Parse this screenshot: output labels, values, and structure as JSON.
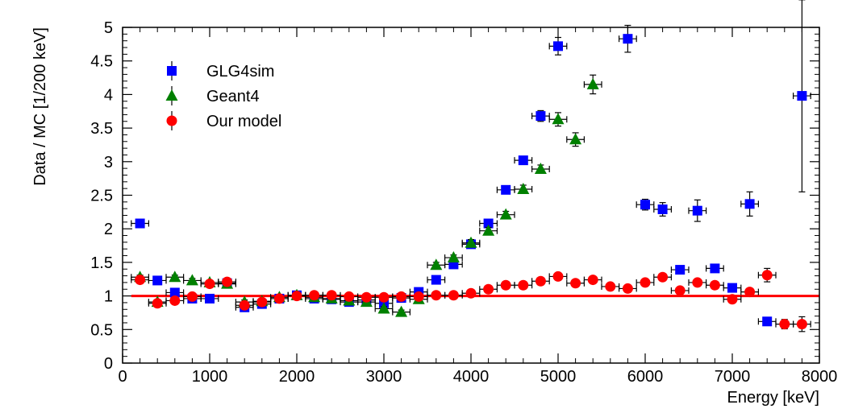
{
  "chart_data": {
    "type": "scatter",
    "xlabel": "Energy [keV]",
    "ylabel": "Data / MC [1/200 keV]",
    "xlim": [
      0,
      8000
    ],
    "ylim": [
      0,
      5
    ],
    "x_ticks": [
      "0",
      "1000",
      "2000",
      "3000",
      "4000",
      "5000",
      "6000",
      "7000",
      "8000"
    ],
    "y_ticks": [
      "0",
      "0.5",
      "1",
      "1.5",
      "2",
      "2.5",
      "3",
      "3.5",
      "4",
      "4.5",
      "5"
    ],
    "x_tick_values": [
      0,
      1000,
      2000,
      3000,
      4000,
      5000,
      6000,
      7000,
      8000
    ],
    "y_tick_values": [
      0,
      0.5,
      1,
      1.5,
      2,
      2.5,
      3,
      3.5,
      4,
      4.5,
      5
    ],
    "x_error": 100,
    "reference_line": {
      "y": 1,
      "color": "#ff0000"
    },
    "legend_position": "top-left",
    "series": [
      {
        "name": "GLG4sim",
        "marker": "square",
        "color": "#0000ff",
        "points": [
          {
            "x": 200,
            "y": 2.08,
            "yerr": 0.03
          },
          {
            "x": 400,
            "y": 1.23,
            "yerr": 0.03
          },
          {
            "x": 600,
            "y": 1.05,
            "yerr": 0.03
          },
          {
            "x": 800,
            "y": 0.96,
            "yerr": 0.03
          },
          {
            "x": 1000,
            "y": 0.96,
            "yerr": 0.03
          },
          {
            "x": 1200,
            "y": 1.19,
            "yerr": 0.03
          },
          {
            "x": 1400,
            "y": 0.83,
            "yerr": 0.03
          },
          {
            "x": 1600,
            "y": 0.88,
            "yerr": 0.03
          },
          {
            "x": 1800,
            "y": 0.96,
            "yerr": 0.03
          },
          {
            "x": 2000,
            "y": 1.01,
            "yerr": 0.03
          },
          {
            "x": 2200,
            "y": 0.96,
            "yerr": 0.03
          },
          {
            "x": 2400,
            "y": 0.95,
            "yerr": 0.03
          },
          {
            "x": 2600,
            "y": 0.91,
            "yerr": 0.03
          },
          {
            "x": 2800,
            "y": 0.94,
            "yerr": 0.03
          },
          {
            "x": 3000,
            "y": 0.89,
            "yerr": 0.03
          },
          {
            "x": 3200,
            "y": 0.97,
            "yerr": 0.03
          },
          {
            "x": 3400,
            "y": 1.06,
            "yerr": 0.04
          },
          {
            "x": 3600,
            "y": 1.24,
            "yerr": 0.04
          },
          {
            "x": 3800,
            "y": 1.47,
            "yerr": 0.04
          },
          {
            "x": 4000,
            "y": 1.77,
            "yerr": 0.05
          },
          {
            "x": 4200,
            "y": 2.08,
            "yerr": 0.05
          },
          {
            "x": 4400,
            "y": 2.58,
            "yerr": 0.05
          },
          {
            "x": 4600,
            "y": 3.02,
            "yerr": 0.06
          },
          {
            "x": 4800,
            "y": 3.68,
            "yerr": 0.08
          },
          {
            "x": 5000,
            "y": 4.72,
            "yerr": 0.13
          },
          {
            "x": 5800,
            "y": 4.83,
            "yerr": 0.2
          },
          {
            "x": 6000,
            "y": 2.36,
            "yerr": 0.08
          },
          {
            "x": 6200,
            "y": 2.29,
            "yerr": 0.1
          },
          {
            "x": 6400,
            "y": 1.39,
            "yerr": 0.05
          },
          {
            "x": 6600,
            "y": 2.27,
            "yerr": 0.16
          },
          {
            "x": 6800,
            "y": 1.41,
            "yerr": 0.06
          },
          {
            "x": 7000,
            "y": 1.12,
            "yerr": 0.05
          },
          {
            "x": 7200,
            "y": 2.37,
            "yerr": 0.18
          },
          {
            "x": 7400,
            "y": 0.62,
            "yerr": 0.03
          },
          {
            "x": 7800,
            "y": 3.98,
            "yerr": 1.43
          }
        ]
      },
      {
        "name": "Geant4",
        "marker": "triangle",
        "color": "#008000",
        "points": [
          {
            "x": 200,
            "y": 1.28,
            "yerr": 0.03
          },
          {
            "x": 400,
            "y": 0.91,
            "yerr": 0.03
          },
          {
            "x": 600,
            "y": 1.28,
            "yerr": 0.03
          },
          {
            "x": 800,
            "y": 1.23,
            "yerr": 0.03
          },
          {
            "x": 1000,
            "y": 1.2,
            "yerr": 0.03
          },
          {
            "x": 1200,
            "y": 1.18,
            "yerr": 0.03
          },
          {
            "x": 1400,
            "y": 0.91,
            "yerr": 0.03
          },
          {
            "x": 1600,
            "y": 0.92,
            "yerr": 0.03
          },
          {
            "x": 1800,
            "y": 0.98,
            "yerr": 0.03
          },
          {
            "x": 2000,
            "y": 1.01,
            "yerr": 0.03
          },
          {
            "x": 2200,
            "y": 0.98,
            "yerr": 0.03
          },
          {
            "x": 2400,
            "y": 0.96,
            "yerr": 0.03
          },
          {
            "x": 2600,
            "y": 0.93,
            "yerr": 0.03
          },
          {
            "x": 2800,
            "y": 0.91,
            "yerr": 0.03
          },
          {
            "x": 3000,
            "y": 0.81,
            "yerr": 0.03
          },
          {
            "x": 3200,
            "y": 0.76,
            "yerr": 0.03
          },
          {
            "x": 3400,
            "y": 0.95,
            "yerr": 0.03
          },
          {
            "x": 3600,
            "y": 1.46,
            "yerr": 0.04
          },
          {
            "x": 3800,
            "y": 1.57,
            "yerr": 0.04
          },
          {
            "x": 4000,
            "y": 1.79,
            "yerr": 0.05
          },
          {
            "x": 4200,
            "y": 1.97,
            "yerr": 0.05
          },
          {
            "x": 4400,
            "y": 2.21,
            "yerr": 0.05
          },
          {
            "x": 4600,
            "y": 2.59,
            "yerr": 0.06
          },
          {
            "x": 4800,
            "y": 2.89,
            "yerr": 0.06
          },
          {
            "x": 5000,
            "y": 3.63,
            "yerr": 0.1
          },
          {
            "x": 5200,
            "y": 3.33,
            "yerr": 0.1
          },
          {
            "x": 5400,
            "y": 4.15,
            "yerr": 0.14
          }
        ]
      },
      {
        "name": "Our model",
        "marker": "circle",
        "color": "#ff0000",
        "points": [
          {
            "x": 200,
            "y": 1.24,
            "yerr": 0.03
          },
          {
            "x": 400,
            "y": 0.89,
            "yerr": 0.03
          },
          {
            "x": 600,
            "y": 0.93,
            "yerr": 0.03
          },
          {
            "x": 800,
            "y": 0.99,
            "yerr": 0.03
          },
          {
            "x": 1000,
            "y": 1.18,
            "yerr": 0.03
          },
          {
            "x": 1200,
            "y": 1.21,
            "yerr": 0.03
          },
          {
            "x": 1400,
            "y": 0.86,
            "yerr": 0.03
          },
          {
            "x": 1600,
            "y": 0.91,
            "yerr": 0.03
          },
          {
            "x": 1800,
            "y": 0.96,
            "yerr": 0.03
          },
          {
            "x": 2000,
            "y": 1.0,
            "yerr": 0.03
          },
          {
            "x": 2200,
            "y": 1.01,
            "yerr": 0.03
          },
          {
            "x": 2400,
            "y": 1.01,
            "yerr": 0.03
          },
          {
            "x": 2600,
            "y": 0.99,
            "yerr": 0.03
          },
          {
            "x": 2800,
            "y": 0.98,
            "yerr": 0.03
          },
          {
            "x": 3000,
            "y": 0.98,
            "yerr": 0.03
          },
          {
            "x": 3200,
            "y": 0.99,
            "yerr": 0.03
          },
          {
            "x": 3400,
            "y": 0.99,
            "yerr": 0.03
          },
          {
            "x": 3600,
            "y": 1.01,
            "yerr": 0.03
          },
          {
            "x": 3800,
            "y": 1.01,
            "yerr": 0.03
          },
          {
            "x": 4000,
            "y": 1.04,
            "yerr": 0.03
          },
          {
            "x": 4200,
            "y": 1.1,
            "yerr": 0.03
          },
          {
            "x": 4400,
            "y": 1.16,
            "yerr": 0.03
          },
          {
            "x": 4600,
            "y": 1.16,
            "yerr": 0.03
          },
          {
            "x": 4800,
            "y": 1.22,
            "yerr": 0.03
          },
          {
            "x": 5000,
            "y": 1.29,
            "yerr": 0.04
          },
          {
            "x": 5200,
            "y": 1.19,
            "yerr": 0.03
          },
          {
            "x": 5400,
            "y": 1.24,
            "yerr": 0.04
          },
          {
            "x": 5600,
            "y": 1.14,
            "yerr": 0.03
          },
          {
            "x": 5800,
            "y": 1.11,
            "yerr": 0.03
          },
          {
            "x": 6000,
            "y": 1.2,
            "yerr": 0.04
          },
          {
            "x": 6200,
            "y": 1.28,
            "yerr": 0.04
          },
          {
            "x": 6400,
            "y": 1.08,
            "yerr": 0.04
          },
          {
            "x": 6600,
            "y": 1.2,
            "yerr": 0.04
          },
          {
            "x": 6800,
            "y": 1.16,
            "yerr": 0.04
          },
          {
            "x": 7000,
            "y": 0.95,
            "yerr": 0.04
          },
          {
            "x": 7200,
            "y": 1.06,
            "yerr": 0.05
          },
          {
            "x": 7400,
            "y": 1.31,
            "yerr": 0.1
          },
          {
            "x": 7600,
            "y": 0.58,
            "yerr": 0.07
          },
          {
            "x": 7800,
            "y": 0.58,
            "yerr": 0.11
          }
        ]
      }
    ]
  }
}
